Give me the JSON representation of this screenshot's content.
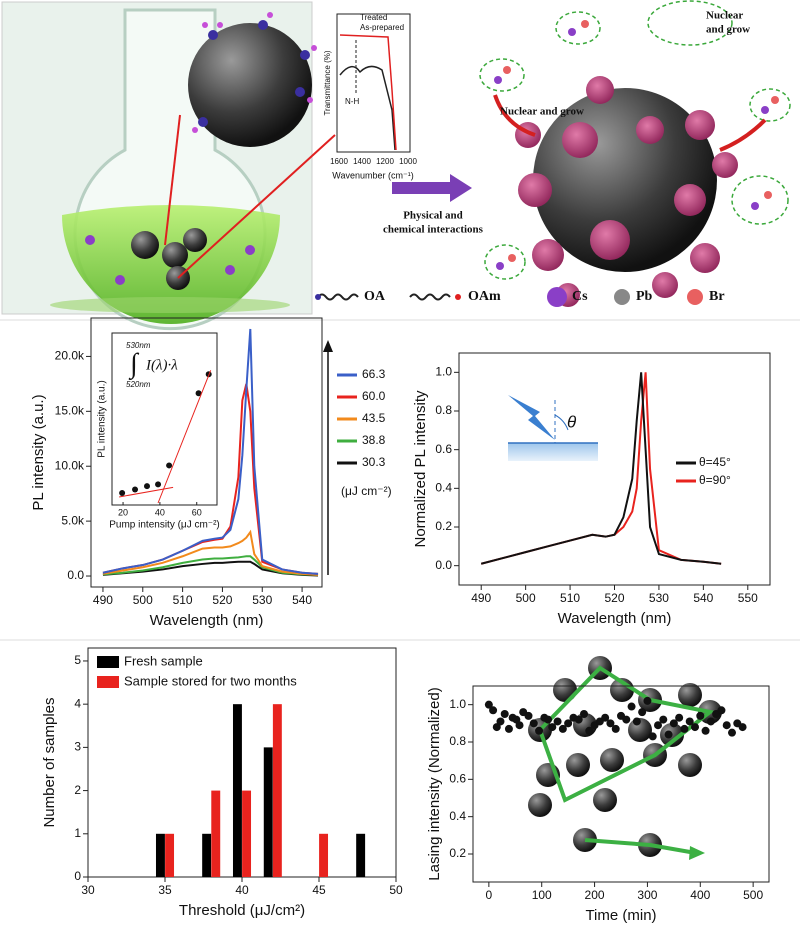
{
  "schematic": {
    "ftir": {
      "legend": [
        "Treated",
        "As-prepared"
      ],
      "ylabel": "Transmittance (%)",
      "annotation": "N-H",
      "xticks": [
        "1600",
        "1400",
        "1200",
        "1000"
      ],
      "xlabel": "Wavenumber (cm⁻¹)"
    },
    "arrow_label": [
      "Physical and",
      "chemical interactions"
    ],
    "callouts": [
      [
        "Nuclear and grow"
      ],
      [
        "Nuclear",
        "and grow"
      ]
    ],
    "legend": [
      "OA",
      "OAm",
      "Cs",
      "Pb",
      "Br"
    ]
  },
  "chart_data": [
    {
      "type": "line",
      "xlabel": "Wavelength (nm)",
      "ylabel": "PL intensity (a.u.)",
      "x": [
        490,
        495,
        500,
        505,
        510,
        515,
        518,
        520,
        522,
        524,
        525,
        526,
        527,
        528,
        530,
        535,
        540,
        544
      ],
      "series": [
        {
          "name": "66.3",
          "color": "#3a5fc8",
          "values": [
            300,
            700,
            1000,
            1500,
            2300,
            3200,
            3400,
            3500,
            4200,
            7000,
            11000,
            17000,
            22500,
            10000,
            1500,
            600,
            300,
            200
          ]
        },
        {
          "name": "60.0",
          "color": "#e8231e",
          "values": [
            300,
            700,
            1000,
            1500,
            2300,
            3100,
            3300,
            3400,
            4500,
            9000,
            16000,
            17500,
            15000,
            8000,
            1300,
            600,
            300,
            200
          ]
        },
        {
          "name": "43.5",
          "color": "#f28a1c",
          "values": [
            200,
            500,
            800,
            1200,
            1800,
            2500,
            2600,
            2600,
            2700,
            3000,
            3200,
            3500,
            4000,
            2000,
            900,
            400,
            200,
            100
          ]
        },
        {
          "name": "38.8",
          "color": "#3fae3f",
          "values": [
            150,
            300,
            500,
            800,
            1200,
            1500,
            1600,
            1600,
            1650,
            1700,
            1750,
            1800,
            1800,
            1500,
            800,
            300,
            150,
            100
          ]
        },
        {
          "name": "30.3",
          "color": "#111111",
          "values": [
            100,
            250,
            400,
            600,
            900,
            1100,
            1200,
            1200,
            1250,
            1300,
            1300,
            1300,
            1300,
            1100,
            600,
            250,
            100,
            50
          ]
        }
      ],
      "legend_title": "(μJ cm⁻²)",
      "xlim": [
        487,
        545
      ],
      "xticks": [
        490,
        500,
        510,
        520,
        530,
        540
      ],
      "ylim": [
        -1000,
        23500
      ],
      "yticks": [
        {
          "value": 0,
          "label": "0.0"
        },
        {
          "value": 5000,
          "label": "5.0k"
        },
        {
          "value": 10000,
          "label": "10.0k"
        },
        {
          "value": 15000,
          "label": "15.0k"
        },
        {
          "value": 20000,
          "label": "20.0k"
        }
      ],
      "inset": {
        "type": "scatter",
        "xlabel": "Pump intensity (μJ cm⁻²)",
        "ylabel": "PL intensity (a.u.)",
        "formula": [
          "530nm",
          "520nm",
          "I(λ)·λ"
        ],
        "x": [
          19.5,
          26.5,
          33,
          39,
          45,
          61,
          66.5
        ],
        "values": [
          0.7,
          0.9,
          1.1,
          1.2,
          2.3,
          6.5,
          7.6
        ],
        "color": "#111111",
        "xlim": [
          14,
          71
        ],
        "xticks": [
          20,
          40,
          60
        ],
        "ylim": [
          0,
          10
        ]
      }
    },
    {
      "type": "line",
      "xlabel": "Wavelength (nm)",
      "ylabel": "Normalized PL intensity",
      "x": [
        490,
        495,
        500,
        505,
        510,
        515,
        518,
        520,
        522,
        524,
        525,
        526,
        527,
        528,
        530,
        535,
        540,
        544
      ],
      "series": [
        {
          "name": "θ=45°",
          "color": "#111111",
          "values": [
            0.01,
            0.04,
            0.07,
            0.1,
            0.13,
            0.16,
            0.15,
            0.16,
            0.25,
            0.45,
            0.75,
            1.0,
            0.6,
            0.2,
            0.06,
            0.03,
            0.02,
            0.01
          ]
        },
        {
          "name": "θ=90°",
          "color": "#e8231e",
          "values": [
            0.01,
            0.04,
            0.07,
            0.1,
            0.13,
            0.16,
            0.15,
            0.16,
            0.2,
            0.28,
            0.4,
            0.75,
            1.0,
            0.5,
            0.08,
            0.03,
            0.02,
            0.01
          ]
        }
      ],
      "annotation": "θ",
      "xlim": [
        485,
        555
      ],
      "xticks": [
        490,
        500,
        510,
        520,
        530,
        540,
        550
      ],
      "ylim": [
        -0.1,
        1.1
      ],
      "yticks": [
        {
          "value": 0,
          "label": "0.0"
        },
        0.2,
        0.4,
        0.6,
        0.8,
        {
          "value": 1,
          "label": "1.0"
        }
      ]
    },
    {
      "type": "bar",
      "xlabel": "Threshold (μJ/cm²)",
      "ylabel": "Number of samples",
      "series": [
        {
          "name": "Fresh sample",
          "color": "#000000",
          "x": [
            35,
            38,
            40,
            42,
            48
          ],
          "values": [
            1,
            1,
            4,
            3,
            1
          ]
        },
        {
          "name": "Sample stored for two months",
          "color": "#e8231e",
          "x": [
            35,
            38,
            40,
            42,
            45
          ],
          "values": [
            1,
            2,
            2,
            4,
            1
          ]
        }
      ],
      "xlim": [
        30,
        50
      ],
      "xticks": [
        30,
        35,
        40,
        45,
        50
      ],
      "ylim": [
        0,
        5.3
      ],
      "yticks": [
        0,
        1,
        2,
        3,
        4,
        5
      ]
    },
    {
      "type": "scatter",
      "xlabel": "Time (min)",
      "ylabel": "Lasing intensity (Normalized)",
      "color": "#111111",
      "x": [
        0,
        8,
        15,
        22,
        30,
        38,
        45,
        52,
        58,
        65,
        75,
        85,
        95,
        105,
        112,
        120,
        130,
        140,
        150,
        160,
        170,
        180,
        190,
        200,
        210,
        220,
        230,
        240,
        250,
        260,
        270,
        280,
        290,
        300,
        310,
        320,
        330,
        340,
        350,
        360,
        370,
        380,
        390,
        400,
        410,
        420,
        430,
        440,
        450,
        460,
        470,
        480
      ],
      "values": [
        1.0,
        0.97,
        0.88,
        0.91,
        0.95,
        0.87,
        0.93,
        0.92,
        0.89,
        0.96,
        0.94,
        0.9,
        0.86,
        0.93,
        0.92,
        0.88,
        0.91,
        0.87,
        0.9,
        0.93,
        0.92,
        0.95,
        0.86,
        0.89,
        0.91,
        0.93,
        0.9,
        0.87,
        0.94,
        0.92,
        0.99,
        0.91,
        0.96,
        1.02,
        0.83,
        0.89,
        0.92,
        0.84,
        0.9,
        0.93,
        0.87,
        0.91,
        0.88,
        0.94,
        0.86,
        0.91,
        0.95,
        0.97,
        0.89,
        0.85,
        0.9,
        0.88
      ],
      "xlim": [
        -30,
        530
      ],
      "xticks": [
        0,
        100,
        200,
        300,
        400,
        500
      ],
      "ylim": [
        0.05,
        1.1
      ],
      "yticks": [
        0.2,
        0.4,
        0.6,
        0.8,
        {
          "value": 1,
          "label": "1.0"
        }
      ]
    }
  ]
}
